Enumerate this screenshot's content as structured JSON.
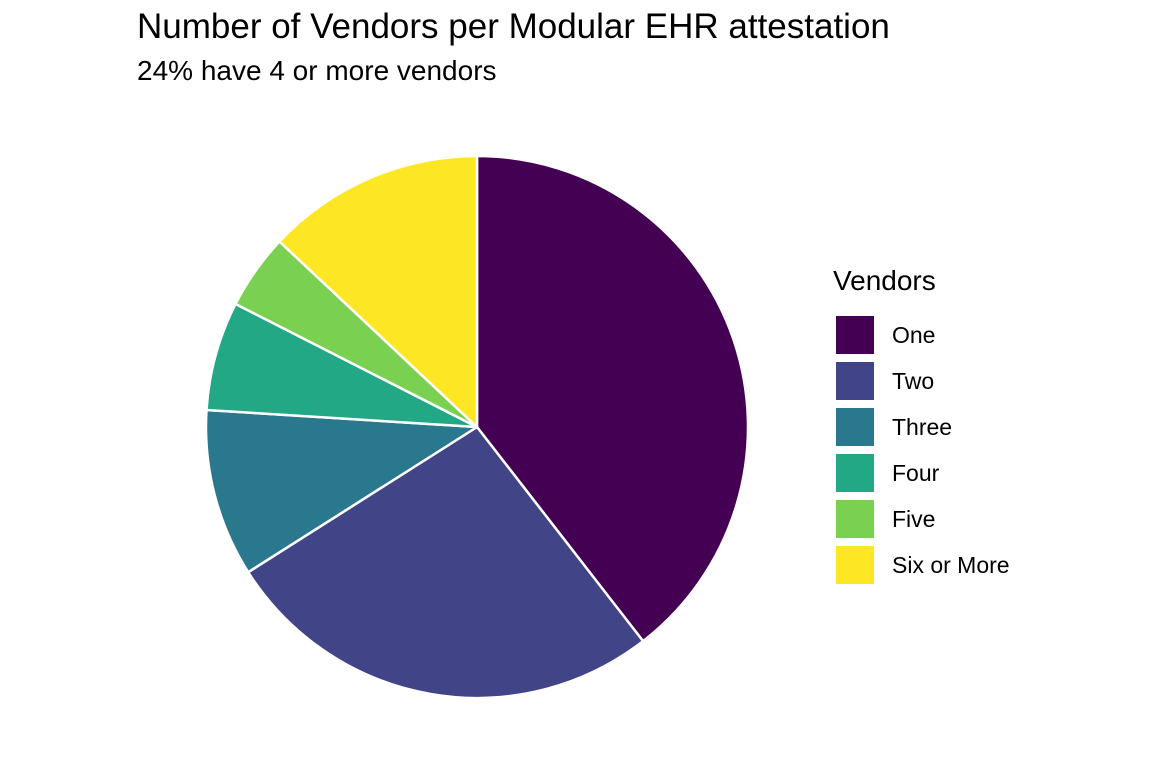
{
  "chart_data": {
    "type": "pie",
    "title": "Number of Vendors per Modular EHR attestation",
    "subtitle": "24% have 4 or more vendors",
    "legend_title": "Vendors",
    "legend_position": "right",
    "direction": "clockwise-from-top",
    "categories": [
      "One",
      "Two",
      "Three",
      "Four",
      "Five",
      "Six or More"
    ],
    "values": [
      39.5,
      26.5,
      10.0,
      6.5,
      4.5,
      13.0
    ],
    "colors": [
      "#440154",
      "#414487",
      "#2A788E",
      "#22A884",
      "#7AD151",
      "#FDE725"
    ]
  }
}
